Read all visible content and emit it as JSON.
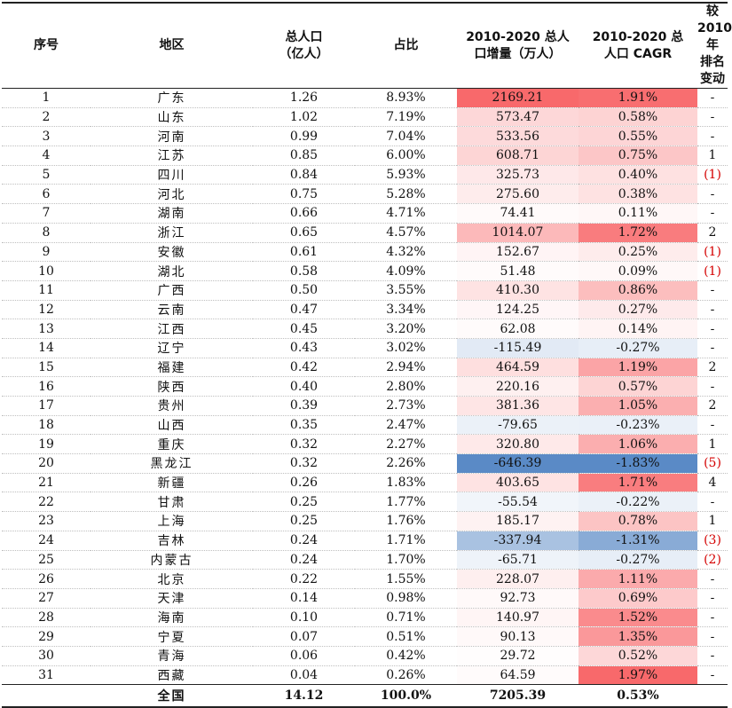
{
  "colors": {
    "pos_max": "#f8696b",
    "neg_max": "#5a8ac6",
    "neutral": "#ffffff",
    "neg_rank": "#d40000"
  },
  "headers": [
    "序号",
    "地区",
    "总人口\n（亿人）",
    "占比",
    "2010-2020 总人\n口增量（万人）",
    "2010-2020 总\n人口 CAGR",
    "较 2010 年\n排名变动"
  ],
  "rows": [
    {
      "rank": "1",
      "region": "广东",
      "pop": "1.26",
      "share": "8.93%",
      "inc": "2169.21",
      "cagr": "1.91%",
      "chg": "-"
    },
    {
      "rank": "2",
      "region": "山东",
      "pop": "1.02",
      "share": "7.19%",
      "inc": "573.47",
      "cagr": "0.58%",
      "chg": "-"
    },
    {
      "rank": "3",
      "region": "河南",
      "pop": "0.99",
      "share": "7.04%",
      "inc": "533.56",
      "cagr": "0.55%",
      "chg": "-"
    },
    {
      "rank": "4",
      "region": "江苏",
      "pop": "0.85",
      "share": "6.00%",
      "inc": "608.71",
      "cagr": "0.75%",
      "chg": "1"
    },
    {
      "rank": "5",
      "region": "四川",
      "pop": "0.84",
      "share": "5.93%",
      "inc": "325.73",
      "cagr": "0.40%",
      "chg": "(1)"
    },
    {
      "rank": "6",
      "region": "河北",
      "pop": "0.75",
      "share": "5.28%",
      "inc": "275.60",
      "cagr": "0.38%",
      "chg": "-"
    },
    {
      "rank": "7",
      "region": "湖南",
      "pop": "0.66",
      "share": "4.71%",
      "inc": "74.41",
      "cagr": "0.11%",
      "chg": "-"
    },
    {
      "rank": "8",
      "region": "浙江",
      "pop": "0.65",
      "share": "4.57%",
      "inc": "1014.07",
      "cagr": "1.72%",
      "chg": "2"
    },
    {
      "rank": "9",
      "region": "安徽",
      "pop": "0.61",
      "share": "4.32%",
      "inc": "152.67",
      "cagr": "0.25%",
      "chg": "(1)"
    },
    {
      "rank": "10",
      "region": "湖北",
      "pop": "0.58",
      "share": "4.09%",
      "inc": "51.48",
      "cagr": "0.09%",
      "chg": "(1)"
    },
    {
      "rank": "11",
      "region": "广西",
      "pop": "0.50",
      "share": "3.55%",
      "inc": "410.30",
      "cagr": "0.86%",
      "chg": "-"
    },
    {
      "rank": "12",
      "region": "云南",
      "pop": "0.47",
      "share": "3.34%",
      "inc": "124.25",
      "cagr": "0.27%",
      "chg": "-"
    },
    {
      "rank": "13",
      "region": "江西",
      "pop": "0.45",
      "share": "3.20%",
      "inc": "62.08",
      "cagr": "0.14%",
      "chg": "-"
    },
    {
      "rank": "14",
      "region": "辽宁",
      "pop": "0.43",
      "share": "3.02%",
      "inc": "-115.49",
      "cagr": "-0.27%",
      "chg": "-"
    },
    {
      "rank": "15",
      "region": "福建",
      "pop": "0.42",
      "share": "2.94%",
      "inc": "464.59",
      "cagr": "1.19%",
      "chg": "2"
    },
    {
      "rank": "16",
      "region": "陕西",
      "pop": "0.40",
      "share": "2.80%",
      "inc": "220.16",
      "cagr": "0.57%",
      "chg": "-"
    },
    {
      "rank": "17",
      "region": "贵州",
      "pop": "0.39",
      "share": "2.73%",
      "inc": "381.36",
      "cagr": "1.05%",
      "chg": "2"
    },
    {
      "rank": "18",
      "region": "山西",
      "pop": "0.35",
      "share": "2.47%",
      "inc": "-79.65",
      "cagr": "-0.23%",
      "chg": "-"
    },
    {
      "rank": "19",
      "region": "重庆",
      "pop": "0.32",
      "share": "2.27%",
      "inc": "320.80",
      "cagr": "1.06%",
      "chg": "1"
    },
    {
      "rank": "20",
      "region": "黑龙江",
      "pop": "0.32",
      "share": "2.26%",
      "inc": "-646.39",
      "cagr": "-1.83%",
      "chg": "(5)"
    },
    {
      "rank": "21",
      "region": "新疆",
      "pop": "0.26",
      "share": "1.83%",
      "inc": "403.65",
      "cagr": "1.71%",
      "chg": "4"
    },
    {
      "rank": "22",
      "region": "甘肃",
      "pop": "0.25",
      "share": "1.77%",
      "inc": "-55.54",
      "cagr": "-0.22%",
      "chg": "-"
    },
    {
      "rank": "23",
      "region": "上海",
      "pop": "0.25",
      "share": "1.76%",
      "inc": "185.17",
      "cagr": "0.78%",
      "chg": "1"
    },
    {
      "rank": "24",
      "region": "吉林",
      "pop": "0.24",
      "share": "1.71%",
      "inc": "-337.94",
      "cagr": "-1.31%",
      "chg": "(3)"
    },
    {
      "rank": "25",
      "region": "内蒙古",
      "pop": "0.24",
      "share": "1.70%",
      "inc": "-65.71",
      "cagr": "-0.27%",
      "chg": "(2)"
    },
    {
      "rank": "26",
      "region": "北京",
      "pop": "0.22",
      "share": "1.55%",
      "inc": "228.07",
      "cagr": "1.11%",
      "chg": "-"
    },
    {
      "rank": "27",
      "region": "天津",
      "pop": "0.14",
      "share": "0.98%",
      "inc": "92.73",
      "cagr": "0.69%",
      "chg": "-"
    },
    {
      "rank": "28",
      "region": "海南",
      "pop": "0.10",
      "share": "0.71%",
      "inc": "140.97",
      "cagr": "1.52%",
      "chg": "-"
    },
    {
      "rank": "29",
      "region": "宁夏",
      "pop": "0.07",
      "share": "0.51%",
      "inc": "90.13",
      "cagr": "1.35%",
      "chg": "-"
    },
    {
      "rank": "30",
      "region": "青海",
      "pop": "0.06",
      "share": "0.42%",
      "inc": "29.72",
      "cagr": "0.52%",
      "chg": "-"
    },
    {
      "rank": "31",
      "region": "西藏",
      "pop": "0.04",
      "share": "0.26%",
      "inc": "64.59",
      "cagr": "1.97%",
      "chg": "-"
    }
  ],
  "total": {
    "label": "全国",
    "pop": "14.12",
    "share": "100.0%",
    "inc": "7205.39",
    "cagr": "0.53%"
  }
}
